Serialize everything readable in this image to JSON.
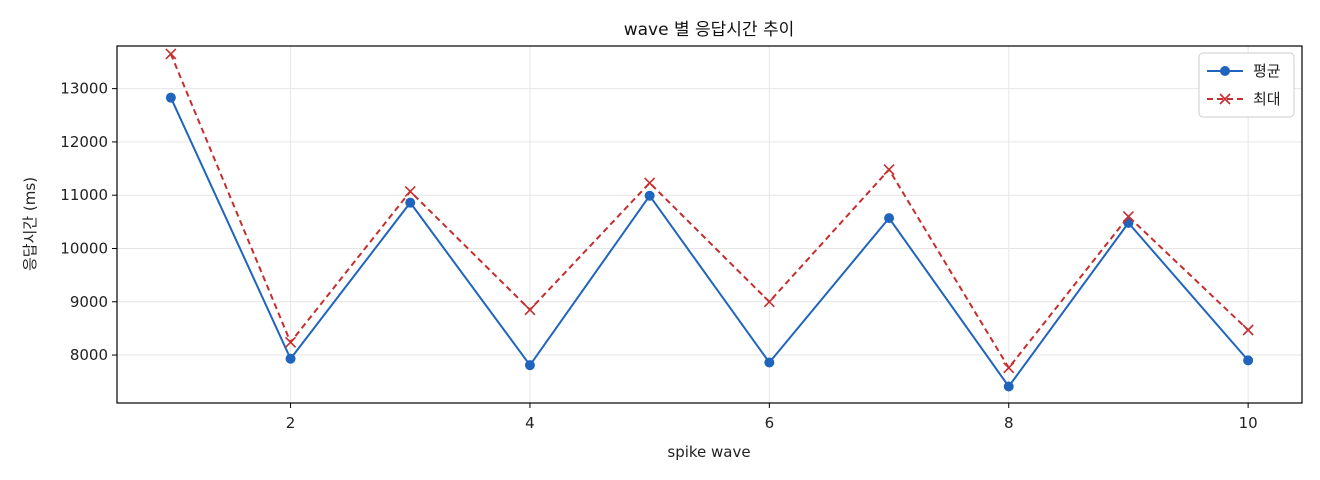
{
  "chart_data": {
    "type": "line",
    "title": "wave 별 응답시간 추이",
    "xlabel": "spike wave",
    "ylabel": "응답시간 (ms)",
    "x": [
      1,
      2,
      3,
      4,
      5,
      6,
      7,
      8,
      9,
      10
    ],
    "xlim": [
      0.55,
      10.45
    ],
    "ylim": [
      7100,
      13800
    ],
    "xticks": [
      2,
      4,
      6,
      8,
      10
    ],
    "yticks": [
      8000,
      9000,
      10000,
      11000,
      12000,
      13000
    ],
    "grid": true,
    "legend_position": "top-right",
    "series": [
      {
        "name": "평균",
        "color": "#1f64bd",
        "style": "solid",
        "marker": "circle",
        "values": [
          12830,
          7930,
          10860,
          7810,
          10990,
          7860,
          10570,
          7410,
          10480,
          7900
        ]
      },
      {
        "name": "최대",
        "color": "#c62d2d",
        "style": "dashed",
        "marker": "x",
        "values": [
          13650,
          8240,
          11070,
          8850,
          11230,
          9000,
          11480,
          7760,
          10600,
          8470
        ]
      }
    ]
  }
}
